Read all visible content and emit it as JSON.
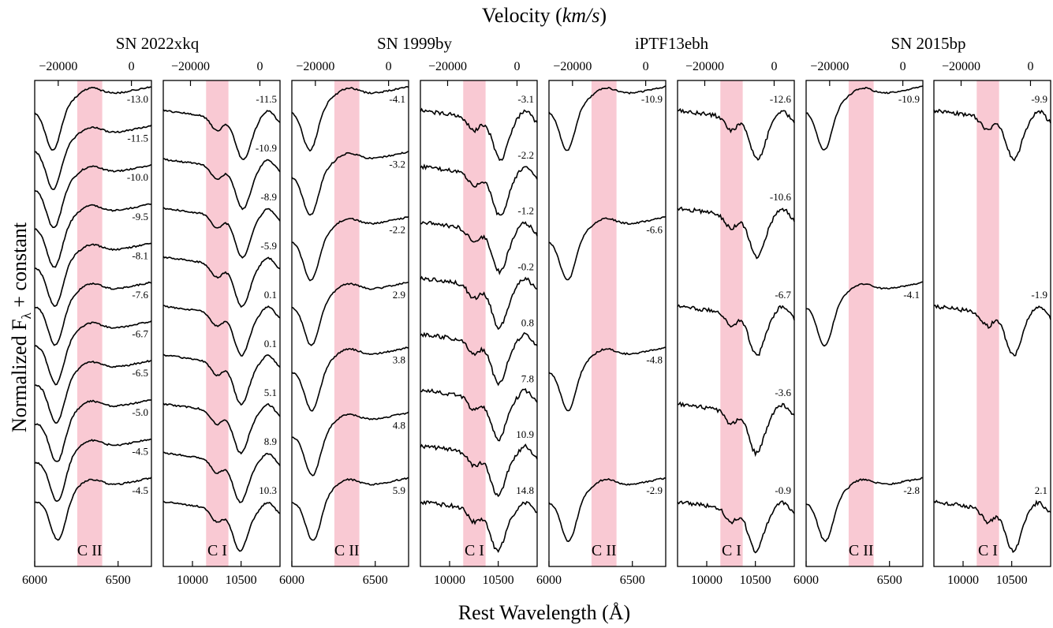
{
  "figure": {
    "top_title": "Velocity (km/s)",
    "top_title_main": "Velocity (",
    "top_title_unit": "km/s",
    "top_title_close": ")",
    "xlabel": "Rest Wavelength (Å)",
    "ylabel_main": "Normalized F",
    "ylabel_sub": "λ",
    "ylabel_tail": " + constant",
    "shade_color": "#f9c9d3",
    "line_color": "#000000",
    "noise_color": "#c4c4c4"
  },
  "chart_data": [
    {
      "type": "line",
      "object": "SN 2022xkq",
      "ion": "C II",
      "band": "optical",
      "xlim": [
        6000,
        6700
      ],
      "xticks": [
        6000,
        6500
      ],
      "vticks": [
        -20000,
        0
      ],
      "shade": [
        6255,
        6405
      ],
      "line_rest": 6580,
      "epochs": [
        "-13.0",
        "-11.5",
        "-10.0",
        "-9.5",
        "-8.1",
        "-7.6",
        "-6.7",
        "-6.5",
        "-5.0",
        "-4.5",
        "-4.5"
      ],
      "noisy": true
    },
    {
      "type": "line",
      "object": "SN 2022xkq",
      "ion": "C I",
      "band": "nir",
      "xlim": [
        9700,
        10900
      ],
      "xticks": [
        10000,
        10500
      ],
      "vticks": [
        -20000,
        0
      ],
      "shade": [
        10140,
        10370
      ],
      "line_rest": 10693,
      "epochs": [
        "-11.5",
        "-10.9",
        "-8.9",
        "-5.9",
        "0.1",
        "0.1",
        "5.1",
        "8.9",
        "10.3"
      ],
      "noisy": true
    },
    {
      "type": "line",
      "object": "SN 1999by",
      "ion": "C II",
      "band": "optical",
      "xlim": [
        6000,
        6700
      ],
      "xticks": [
        6000,
        6500
      ],
      "vticks": [
        -20000,
        0
      ],
      "shade": [
        6255,
        6405
      ],
      "line_rest": 6580,
      "epochs": [
        "-4.1",
        "-3.2",
        "-2.2",
        "2.9",
        "3.8",
        "4.8",
        "5.9"
      ],
      "noisy": false
    },
    {
      "type": "line",
      "object": "SN 1999by",
      "ion": "C I",
      "band": "nir",
      "xlim": [
        9700,
        10900
      ],
      "xticks": [
        10000,
        10500
      ],
      "vticks": [
        -20000,
        0
      ],
      "shade": [
        10140,
        10370
      ],
      "line_rest": 10693,
      "epochs": [
        "-3.1",
        "-2.2",
        "-1.2",
        "-0.2",
        "0.8",
        "7.8",
        "10.9",
        "14.8"
      ],
      "noisy": false
    },
    {
      "type": "line",
      "object": "iPTF13ebh",
      "ion": "C II",
      "band": "optical",
      "xlim": [
        6000,
        6700
      ],
      "xticks": [
        6000,
        6500
      ],
      "vticks": [
        -20000,
        0
      ],
      "shade": [
        6255,
        6405
      ],
      "line_rest": 6580,
      "epochs": [
        "-10.9",
        "-6.6",
        "-4.8",
        "-2.9"
      ],
      "noisy": false
    },
    {
      "type": "line",
      "object": "iPTF13ebh",
      "ion": "C I",
      "band": "nir",
      "xlim": [
        9700,
        10900
      ],
      "xticks": [
        10000,
        10500
      ],
      "vticks": [
        -20000,
        0
      ],
      "shade": [
        10140,
        10370
      ],
      "line_rest": 10693,
      "epochs": [
        "-12.6",
        "-10.6",
        "-6.7",
        "-3.6",
        "-0.9"
      ],
      "noisy": false
    },
    {
      "type": "line",
      "object": "SN 2015bp",
      "ion": "C II",
      "band": "optical",
      "xlim": [
        6000,
        6700
      ],
      "xticks": [
        6000,
        6500
      ],
      "vticks": [
        -20000,
        0
      ],
      "shade": [
        6255,
        6405
      ],
      "line_rest": 6580,
      "epochs": [
        "-10.9",
        "-4.1",
        "-2.8"
      ],
      "noisy": false
    },
    {
      "type": "line",
      "object": "SN 2015bp",
      "ion": "C I",
      "band": "nir",
      "xlim": [
        9700,
        10900
      ],
      "xticks": [
        10000,
        10500
      ],
      "vticks": [
        -20000,
        0
      ],
      "shade": [
        10140,
        10370
      ],
      "line_rest": 10693,
      "epochs": [
        "-9.9",
        "-1.9",
        "2.1"
      ],
      "noisy": false
    }
  ]
}
